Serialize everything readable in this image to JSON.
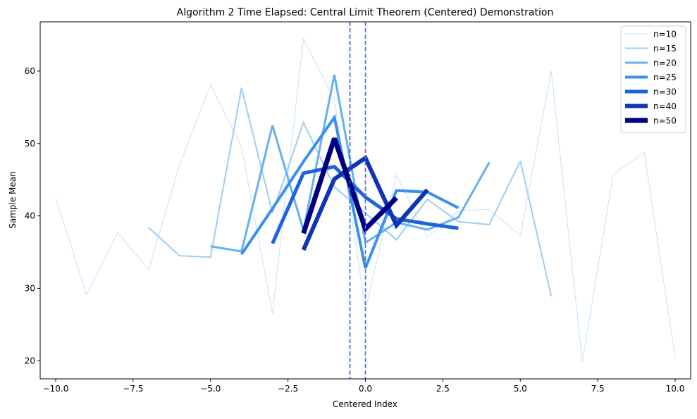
{
  "chart_data": {
    "type": "line",
    "title": "Algorithm 2 Time Elapsed: Central Limit Theorem (Centered) Demonstration",
    "xlabel": "Centered Index",
    "ylabel": "Sample Mean",
    "xlim": [
      -10.5,
      10.5
    ],
    "ylim": [
      17.5,
      66.8
    ],
    "xticks": [
      -10.0,
      -7.5,
      -5.0,
      -2.5,
      0.0,
      2.5,
      5.0,
      7.5,
      10.0
    ],
    "xtick_labels": [
      "−10.0",
      "−7.5",
      "−5.0",
      "−2.5",
      "0.0",
      "2.5",
      "5.0",
      "7.5",
      "10.0"
    ],
    "yticks": [
      20,
      30,
      40,
      50,
      60
    ],
    "ytick_labels": [
      "20",
      "30",
      "40",
      "50",
      "60"
    ],
    "grid": false,
    "legend_position": "top-right",
    "vlines": [
      {
        "x": -0.5,
        "color": "#2f5fbf",
        "style": "dashed"
      },
      {
        "x": 0.0,
        "color": "#4a72d8",
        "style": "dashed"
      }
    ],
    "series": [
      {
        "name": "n=10",
        "color": "#c6e1fb",
        "width": 1,
        "x": [
          -10,
          -9,
          -8,
          -7,
          -6,
          -5,
          -4,
          -3,
          -2,
          -1,
          0,
          1,
          2,
          3,
          4,
          5,
          6,
          7,
          8,
          9,
          10
        ],
        "y": [
          42.5,
          29.1,
          37.7,
          32.6,
          47.0,
          58.1,
          49.5,
          26.5,
          64.5,
          56.0,
          27.0,
          45.6,
          37.1,
          40.7,
          40.9,
          37.3,
          60.0,
          19.8,
          45.7,
          48.8,
          20.4
        ]
      },
      {
        "name": "n=15",
        "color": "#9bcdf6",
        "width": 2,
        "x": [
          -7,
          -6,
          -5,
          -4,
          -3,
          -2,
          -1,
          0,
          1,
          2,
          3,
          4,
          5,
          6
        ],
        "y": [
          38.4,
          34.5,
          34.3,
          57.7,
          40.4,
          52.9,
          44.0,
          40.4,
          36.7,
          42.3,
          39.2,
          38.8,
          47.6,
          28.9
        ]
      },
      {
        "name": "n=20",
        "color": "#64b0f2",
        "width": 3,
        "x": [
          -5,
          -4,
          -3,
          -2,
          -1,
          0,
          1,
          2,
          3,
          4
        ],
        "y": [
          35.8,
          35.1,
          52.5,
          38.0,
          59.5,
          36.3,
          39.1,
          38.1,
          39.8,
          47.4
        ]
      },
      {
        "name": "n=25",
        "color": "#3990ee",
        "width": 4,
        "x": [
          -4,
          -3,
          -2,
          -1,
          0,
          1,
          2,
          3
        ],
        "y": [
          34.7,
          41.0,
          47.5,
          53.6,
          32.8,
          43.5,
          43.3,
          41.1
        ]
      },
      {
        "name": "n=30",
        "color": "#1f63dc",
        "width": 5,
        "x": [
          -3,
          -2,
          -1,
          0,
          1,
          2,
          3
        ],
        "y": [
          36.2,
          45.9,
          46.8,
          42.6,
          39.6,
          38.9,
          38.3
        ]
      },
      {
        "name": "n=40",
        "color": "#1034b4",
        "width": 6,
        "x": [
          -2,
          -1,
          0,
          1,
          2
        ],
        "y": [
          35.3,
          45.1,
          48.0,
          38.7,
          43.6
        ]
      },
      {
        "name": "n=50",
        "color": "#00007e",
        "width": 7,
        "x": [
          -2,
          -1,
          0,
          1
        ],
        "y": [
          37.6,
          50.7,
          38.2,
          42.5
        ]
      }
    ]
  }
}
